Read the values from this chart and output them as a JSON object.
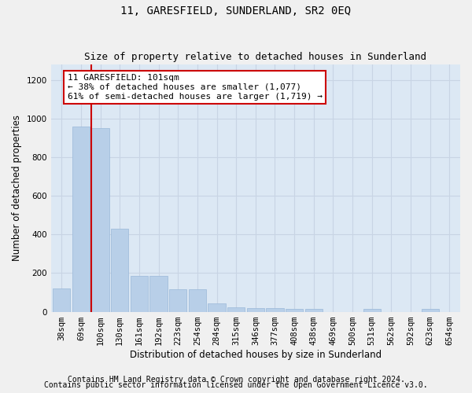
{
  "title": "11, GARESFIELD, SUNDERLAND, SR2 0EQ",
  "subtitle": "Size of property relative to detached houses in Sunderland",
  "xlabel": "Distribution of detached houses by size in Sunderland",
  "ylabel": "Number of detached properties",
  "categories": [
    "38sqm",
    "69sqm",
    "100sqm",
    "130sqm",
    "161sqm",
    "192sqm",
    "223sqm",
    "254sqm",
    "284sqm",
    "315sqm",
    "346sqm",
    "377sqm",
    "408sqm",
    "438sqm",
    "469sqm",
    "500sqm",
    "531sqm",
    "562sqm",
    "592sqm",
    "623sqm",
    "654sqm"
  ],
  "values": [
    120,
    960,
    950,
    430,
    185,
    185,
    115,
    115,
    42,
    22,
    18,
    18,
    14,
    14,
    0,
    0,
    14,
    0,
    0,
    14,
    0
  ],
  "bar_color": "#b8cfe8",
  "bar_edgecolor": "#9ab8d8",
  "vline_x_index": 2,
  "vline_color": "#cc0000",
  "annotation_line1": "11 GARESFIELD: 101sqm",
  "annotation_line2": "← 38% of detached houses are smaller (1,077)",
  "annotation_line3": "61% of semi-detached houses are larger (1,719) →",
  "annotation_box_facecolor": "#ffffff",
  "annotation_box_edgecolor": "#cc0000",
  "ylim": [
    0,
    1280
  ],
  "yticks": [
    0,
    200,
    400,
    600,
    800,
    1000,
    1200
  ],
  "grid_color": "#c8d4e4",
  "plot_bg_color": "#dce8f4",
  "fig_bg_color": "#f0f0f0",
  "title_fontsize": 10,
  "subtitle_fontsize": 9,
  "axis_label_fontsize": 8.5,
  "tick_fontsize": 7.5,
  "annotation_fontsize": 8,
  "footer_fontsize": 7,
  "footer1": "Contains HM Land Registry data © Crown copyright and database right 2024.",
  "footer2": "Contains public sector information licensed under the Open Government Licence v3.0."
}
